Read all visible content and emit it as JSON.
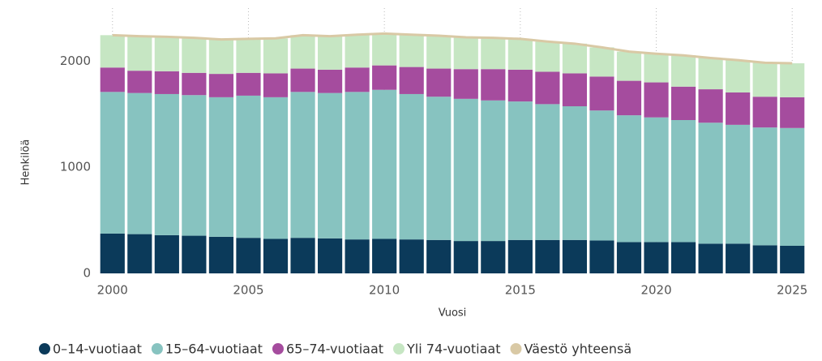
{
  "chart_data": {
    "type": "bar",
    "stacked": true,
    "x_label": "Vuosi",
    "y_label": "Henkilöä",
    "x": [
      2000,
      2001,
      2002,
      2003,
      2004,
      2005,
      2006,
      2007,
      2008,
      2009,
      2010,
      2011,
      2012,
      2013,
      2014,
      2015,
      2016,
      2017,
      2018,
      2019,
      2020,
      2021,
      2022,
      2023,
      2024,
      2025
    ],
    "xlim": [
      1999.5,
      2025.5
    ],
    "xticks": [
      2000,
      2005,
      2010,
      2015,
      2020,
      2025
    ],
    "ylim": [
      0,
      2500
    ],
    "yticks": [
      0,
      1000,
      2000
    ],
    "grid": true,
    "series": [
      {
        "name": "0–14-vuotiaat",
        "color": "#0b3a5a",
        "values": [
          375,
          370,
          360,
          355,
          345,
          335,
          325,
          335,
          330,
          320,
          325,
          320,
          315,
          305,
          305,
          315,
          315,
          315,
          310,
          295,
          295,
          295,
          280,
          280,
          265,
          260
        ]
      },
      {
        "name": "15–64-vuotiaat",
        "color": "#87c3c0",
        "values": [
          1335,
          1330,
          1330,
          1325,
          1315,
          1340,
          1335,
          1375,
          1370,
          1390,
          1405,
          1370,
          1350,
          1340,
          1325,
          1305,
          1280,
          1260,
          1225,
          1195,
          1175,
          1150,
          1140,
          1120,
          1110,
          1110
        ]
      },
      {
        "name": "65–74-vuotiaat",
        "color": "#a54c9e",
        "values": [
          230,
          210,
          215,
          210,
          220,
          215,
          225,
          220,
          220,
          230,
          230,
          255,
          265,
          280,
          295,
          300,
          305,
          310,
          320,
          325,
          330,
          315,
          315,
          305,
          290,
          290
        ]
      },
      {
        "name": "Yli 74-vuotiaat",
        "color": "#c6e6c3",
        "values": [
          305,
          325,
          325,
          330,
          325,
          320,
          330,
          315,
          315,
          310,
          300,
          305,
          310,
          300,
          295,
          290,
          285,
          280,
          275,
          275,
          270,
          295,
          295,
          305,
          320,
          320
        ]
      },
      {
        "name": "Väestö yhteensä",
        "color": "#d9c9a5",
        "type": "line",
        "values": [
          2245,
          2235,
          2230,
          2220,
          2205,
          2210,
          2215,
          2245,
          2235,
          2250,
          2260,
          2250,
          2240,
          2225,
          2220,
          2210,
          2185,
          2165,
          2130,
          2090,
          2070,
          2055,
          2030,
          2010,
          1985,
          1980
        ]
      }
    ]
  }
}
